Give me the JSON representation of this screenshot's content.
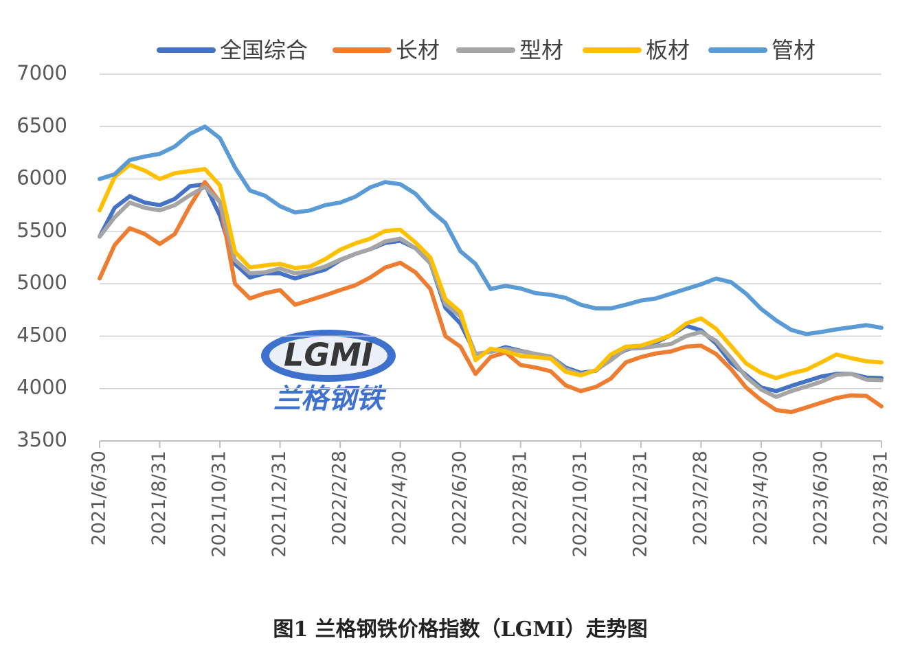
{
  "chart_data": {
    "type": "line",
    "title": "图1 兰格钢铁价格指数（LGMI）走势图",
    "watermark": {
      "logo": "LGMI",
      "name": "兰格钢铁"
    },
    "categories": [
      "2021/6/30",
      null,
      null,
      null,
      "2021/8/31",
      null,
      null,
      null,
      "2021/10/31",
      null,
      null,
      null,
      "2021/12/31",
      null,
      null,
      null,
      "2022/2/28",
      null,
      null,
      null,
      "2022/4/30",
      null,
      null,
      null,
      "2022/6/30",
      null,
      null,
      null,
      "2022/8/31",
      null,
      null,
      null,
      "2022/10/31",
      null,
      null,
      null,
      "2022/12/31",
      null,
      null,
      null,
      "2023/2/28",
      null,
      null,
      null,
      "2023/4/30",
      null,
      null,
      null,
      "2023/6/30",
      null,
      null,
      null,
      "2023/8/31"
    ],
    "ylim": [
      3500,
      7000
    ],
    "yticks": [
      3500,
      4000,
      4500,
      5000,
      5500,
      6000,
      6500,
      7000
    ],
    "grid": true,
    "legend": "top",
    "series": [
      {
        "name": "全国综合",
        "color": "#4472c4",
        "values": [
          5450,
          5725,
          5835,
          5775,
          5750,
          5810,
          5930,
          5950,
          5650,
          5190,
          5060,
          5100,
          5100,
          5050,
          5095,
          5135,
          5225,
          5285,
          5330,
          5390,
          5410,
          5340,
          5195,
          4770,
          4620,
          4330,
          4350,
          4395,
          4360,
          4330,
          4305,
          4200,
          4150,
          4170,
          4290,
          4370,
          4405,
          4440,
          4510,
          4600,
          4555,
          4430,
          4245,
          4130,
          4010,
          3975,
          4025,
          4070,
          4115,
          4140,
          4140,
          4105,
          4100
        ]
      },
      {
        "name": "长材",
        "color": "#ed7d31",
        "values": [
          5050,
          5370,
          5530,
          5475,
          5380,
          5475,
          5740,
          5970,
          5780,
          5000,
          4860,
          4910,
          4940,
          4800,
          4845,
          4890,
          4940,
          4985,
          5060,
          5155,
          5200,
          5110,
          4950,
          4500,
          4400,
          4140,
          4300,
          4345,
          4225,
          4200,
          4165,
          4030,
          3975,
          4015,
          4095,
          4250,
          4300,
          4335,
          4355,
          4400,
          4410,
          4330,
          4185,
          4010,
          3890,
          3795,
          3775,
          3820,
          3865,
          3910,
          3935,
          3930,
          3830
        ]
      },
      {
        "name": "型材",
        "color": "#a5a5a5",
        "values": [
          5450,
          5635,
          5775,
          5725,
          5700,
          5750,
          5845,
          5925,
          5780,
          5225,
          5100,
          5110,
          5145,
          5100,
          5120,
          5165,
          5230,
          5285,
          5330,
          5405,
          5430,
          5340,
          5195,
          4805,
          4690,
          4330,
          4350,
          4380,
          4355,
          4330,
          4305,
          4185,
          4135,
          4175,
          4270,
          4380,
          4385,
          4405,
          4425,
          4500,
          4540,
          4455,
          4290,
          4110,
          3990,
          3920,
          3975,
          4020,
          4065,
          4130,
          4140,
          4085,
          4080
        ]
      },
      {
        "name": "板材",
        "color": "#ffc000",
        "values": [
          5700,
          6020,
          6135,
          6080,
          6000,
          6055,
          6075,
          6095,
          5940,
          5305,
          5155,
          5175,
          5190,
          5150,
          5165,
          5235,
          5325,
          5385,
          5430,
          5505,
          5515,
          5395,
          5250,
          4855,
          4730,
          4270,
          4380,
          4355,
          4310,
          4300,
          4285,
          4160,
          4125,
          4175,
          4325,
          4400,
          4410,
          4455,
          4510,
          4620,
          4670,
          4570,
          4405,
          4240,
          4150,
          4100,
          4145,
          4180,
          4250,
          4325,
          4290,
          4260,
          4250
        ]
      },
      {
        "name": "管材",
        "color": "#5b9bd5",
        "values": [
          6000,
          6045,
          6180,
          6215,
          6240,
          6310,
          6430,
          6500,
          6390,
          6110,
          5890,
          5840,
          5740,
          5680,
          5700,
          5750,
          5775,
          5830,
          5920,
          5970,
          5950,
          5860,
          5700,
          5580,
          5310,
          5190,
          4950,
          4980,
          4955,
          4910,
          4895,
          4865,
          4800,
          4765,
          4765,
          4800,
          4840,
          4860,
          4905,
          4950,
          4995,
          5050,
          5015,
          4905,
          4760,
          4650,
          4560,
          4520,
          4540,
          4565,
          4585,
          4605,
          4580
        ]
      }
    ]
  }
}
